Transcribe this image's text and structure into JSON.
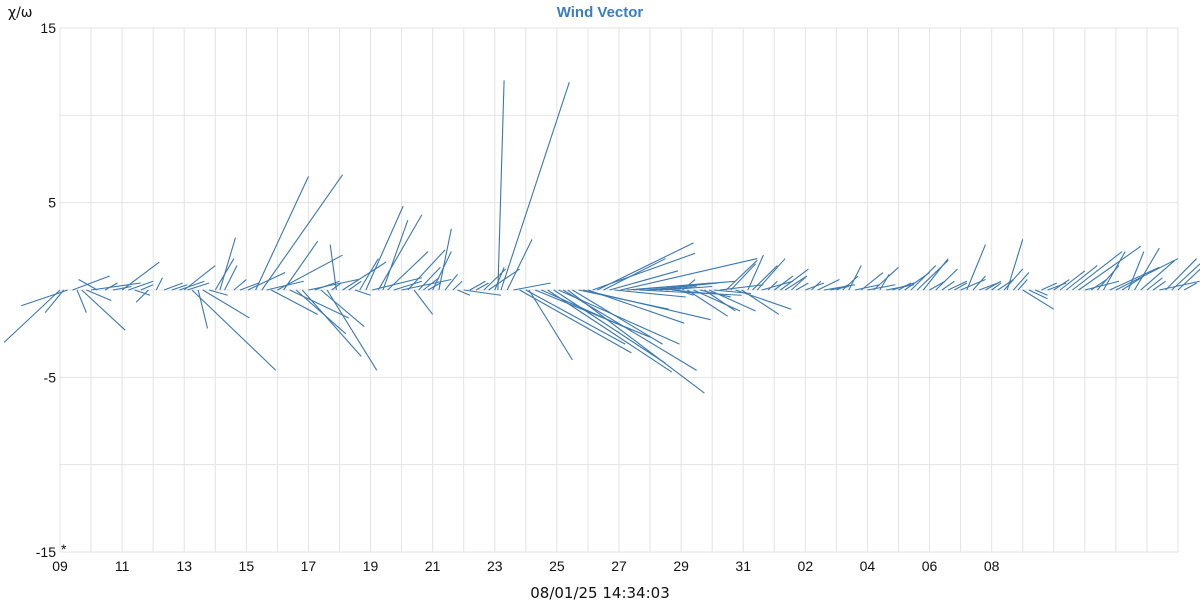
{
  "chart_data": {
    "type": "vector",
    "title": "Wind Vector",
    "ylabel": "χ/ω",
    "footer": "08/01/25 14:34:03",
    "y_ticks": [
      15,
      5,
      -5,
      -15
    ],
    "ylim": [
      -15,
      15
    ],
    "x_ticks": [
      "09",
      "11",
      "13",
      "15",
      "17",
      "19",
      "21",
      "23",
      "25",
      "27",
      "29",
      "31",
      "02",
      "04",
      "06",
      "08"
    ],
    "x_day_start": "09",
    "x_day_end": "09",
    "grid": true,
    "colors": {
      "title": "#3a7ebf",
      "vector": "#3a78b0",
      "grid": "#e3e3e3"
    },
    "vectors": [
      [
        0.0,
        -1.8,
        -3.0
      ],
      [
        0.12,
        -0.6,
        -1.3
      ],
      [
        0.25,
        -1.5,
        -0.9
      ],
      [
        0.4,
        1.2,
        0.8
      ],
      [
        0.55,
        0.3,
        -1.3
      ],
      [
        0.7,
        1.4,
        -2.3
      ],
      [
        0.85,
        0.8,
        -0.6
      ],
      [
        1.0,
        1.6,
        0.4
      ],
      [
        1.2,
        -0.6,
        0.6
      ],
      [
        1.45,
        0.4,
        0.4
      ],
      [
        1.7,
        0.6,
        0.2
      ],
      [
        2.0,
        1.2,
        1.6
      ],
      [
        2.2,
        0.8,
        0.5
      ],
      [
        2.4,
        0.5,
        -0.3
      ],
      [
        2.6,
        0.4,
        0.3
      ],
      [
        2.85,
        -0.4,
        -0.7
      ],
      [
        3.1,
        0.2,
        0.7
      ],
      [
        3.35,
        0.6,
        0.4
      ],
      [
        3.6,
        0.5,
        0.3
      ],
      [
        3.85,
        0.8,
        0.5
      ],
      [
        4.0,
        1.0,
        1.4
      ],
      [
        4.1,
        0.7,
        0.4
      ],
      [
        4.25,
        2.7,
        -4.6
      ],
      [
        4.45,
        0.3,
        -2.2
      ],
      [
        4.6,
        1.5,
        -1.6
      ],
      [
        4.8,
        0.6,
        -0.3
      ],
      [
        5.0,
        0.6,
        1.8
      ],
      [
        5.15,
        0.5,
        3.0
      ],
      [
        5.3,
        0.4,
        1.4
      ],
      [
        5.6,
        0.4,
        0.6
      ],
      [
        5.8,
        0.6,
        0.4
      ],
      [
        6.05,
        1.2,
        1.0
      ],
      [
        6.3,
        1.7,
        6.5
      ],
      [
        6.5,
        2.6,
        6.6
      ],
      [
        6.65,
        1.2,
        0.5
      ],
      [
        6.8,
        1.5,
        -1.4
      ],
      [
        7.0,
        2.1,
        2.0
      ],
      [
        7.2,
        1.1,
        2.8
      ],
      [
        7.4,
        1.9,
        -1.6
      ],
      [
        7.6,
        1.6,
        -2.5
      ],
      [
        7.8,
        1.9,
        -3.8
      ],
      [
        8.0,
        1.6,
        0.6
      ],
      [
        8.2,
        0.8,
        0.5
      ],
      [
        8.4,
        1.4,
        -2.1
      ],
      [
        8.6,
        1.6,
        -4.6
      ],
      [
        8.75,
        0.3,
        0.4
      ],
      [
        8.9,
        -0.2,
        2.6
      ],
      [
        9.1,
        1.4,
        1.6
      ],
      [
        9.3,
        0.4,
        0.5
      ],
      [
        9.5,
        0.5,
        -0.3
      ],
      [
        9.65,
        0.6,
        1.8
      ],
      [
        9.85,
        1.2,
        4.8
      ],
      [
        10.05,
        1.6,
        0.7
      ],
      [
        10.25,
        1.4,
        4.3
      ],
      [
        10.4,
        0.8,
        4.0
      ],
      [
        10.55,
        1.3,
        2.2
      ],
      [
        10.75,
        0.9,
        0.5
      ],
      [
        11.0,
        1.6,
        0.6
      ],
      [
        11.2,
        1.2,
        2.3
      ],
      [
        11.4,
        0.6,
        -1.4
      ],
      [
        11.55,
        0.7,
        1.3
      ],
      [
        11.7,
        0.5,
        0.7
      ],
      [
        11.85,
        0.4,
        0.4
      ],
      [
        12.0,
        0.6,
        2.2
      ],
      [
        12.2,
        0.4,
        3.5
      ],
      [
        12.4,
        0.4,
        0.9
      ],
      [
        12.65,
        0.3,
        0.5
      ],
      [
        12.8,
        0.4,
        -0.3
      ],
      [
        13.0,
        1.2,
        -0.3
      ],
      [
        13.2,
        0.5,
        0.5
      ],
      [
        13.4,
        0.4,
        0.4
      ],
      [
        13.65,
        0.7,
        1.2
      ],
      [
        13.8,
        1.0,
        1.2
      ],
      [
        14.0,
        0.3,
        1.3
      ],
      [
        14.1,
        0.2,
        12.0
      ],
      [
        14.2,
        2.2,
        11.9
      ],
      [
        14.4,
        0.8,
        2.9
      ],
      [
        14.6,
        1.2,
        0.4
      ],
      [
        14.8,
        3.6,
        -3.6
      ],
      [
        15.0,
        3.2,
        -3.1
      ],
      [
        15.1,
        1.4,
        -4.0
      ],
      [
        15.3,
        3.7,
        -2.7
      ],
      [
        15.5,
        2.9,
        -2.3
      ],
      [
        15.7,
        4.0,
        -4.7
      ],
      [
        15.9,
        3.6,
        -4.2
      ],
      [
        16.05,
        3.9,
        -3.1
      ],
      [
        16.2,
        4.3,
        -4.6
      ],
      [
        16.35,
        4.4,
        -5.9
      ],
      [
        16.5,
        2.9,
        -3.1
      ],
      [
        16.7,
        2.9,
        -1.1
      ],
      [
        16.85,
        4.1,
        -1.7
      ],
      [
        17.0,
        3.1,
        -1.9
      ],
      [
        17.15,
        3.3,
        2.1
      ],
      [
        17.3,
        3.1,
        2.7
      ],
      [
        17.5,
        2.0,
        1.8
      ],
      [
        17.7,
        2.2,
        1.1
      ],
      [
        17.85,
        2.3,
        -0.4
      ],
      [
        18.05,
        4.4,
        1.8
      ],
      [
        18.25,
        3.5,
        0.5
      ],
      [
        18.45,
        2.5,
        0.4
      ],
      [
        18.65,
        3.3,
        -0.3
      ],
      [
        18.9,
        2.3,
        0.4
      ],
      [
        19.1,
        1.5,
        0.3
      ],
      [
        19.3,
        1.2,
        0.2
      ],
      [
        19.5,
        1.5,
        0.2
      ],
      [
        19.7,
        1.2,
        -0.2
      ],
      [
        19.9,
        0.5,
        -0.3
      ],
      [
        20.05,
        0.4,
        0.6
      ],
      [
        20.2,
        1.3,
        -1.5
      ],
      [
        20.4,
        1.5,
        -1.2
      ],
      [
        20.6,
        1.0,
        -0.4
      ],
      [
        20.75,
        1.0,
        -1.2
      ],
      [
        20.9,
        1.5,
        -1.2
      ],
      [
        21.05,
        1.2,
        -0.2
      ],
      [
        21.25,
        1.4,
        0.3
      ],
      [
        21.45,
        1.0,
        1.7
      ],
      [
        21.6,
        0.8,
        1.5
      ],
      [
        21.75,
        1.8,
        -1.1
      ],
      [
        21.95,
        1.2,
        -1.4
      ],
      [
        22.15,
        0.5,
        2.0
      ],
      [
        22.3,
        0.8,
        1.4
      ],
      [
        22.45,
        0.9,
        1.8
      ],
      [
        22.6,
        1.0,
        0.5
      ],
      [
        22.8,
        0.3,
        0.5
      ],
      [
        23.0,
        0.6,
        0.8
      ],
      [
        23.2,
        0.9,
        1.2
      ],
      [
        23.35,
        0.7,
        0.8
      ],
      [
        23.55,
        0.5,
        0.8
      ],
      [
        23.7,
        0.4,
        0.4
      ],
      [
        24.0,
        0.6,
        0.4
      ],
      [
        24.2,
        0.3,
        0.5
      ],
      [
        24.4,
        0.7,
        0.6
      ],
      [
        24.6,
        1.0,
        0.3
      ],
      [
        24.8,
        0.6,
        0.2
      ],
      [
        25.0,
        0.4,
        0.3
      ],
      [
        25.2,
        0.5,
        0.8
      ],
      [
        25.4,
        0.4,
        1.4
      ],
      [
        25.6,
        0.8,
        0.3
      ],
      [
        25.8,
        0.7,
        1.0
      ],
      [
        26.0,
        0.9,
        0.3
      ],
      [
        26.2,
        0.8,
        1.3
      ],
      [
        26.4,
        0.3,
        0.9
      ],
      [
        26.6,
        0.9,
        0.3
      ],
      [
        26.8,
        0.7,
        0.4
      ],
      [
        27.0,
        0.4,
        0.4
      ],
      [
        27.2,
        0.8,
        1.0
      ],
      [
        27.4,
        0.8,
        1.4
      ],
      [
        27.6,
        1.0,
        1.7
      ],
      [
        27.8,
        0.8,
        1.8
      ],
      [
        28.0,
        0.5,
        0.5
      ],
      [
        28.2,
        0.7,
        1.2
      ],
      [
        28.4,
        0.4,
        0.5
      ],
      [
        28.6,
        0.6,
        0.5
      ],
      [
        28.8,
        0.4,
        0.4
      ],
      [
        29.0,
        0.8,
        0.6
      ],
      [
        29.2,
        0.6,
        2.6
      ],
      [
        29.4,
        0.4,
        0.8
      ],
      [
        29.6,
        0.6,
        0.4
      ],
      [
        29.8,
        0.5,
        0.5
      ],
      [
        30.0,
        0.3,
        0.4
      ],
      [
        30.2,
        0.5,
        0.6
      ],
      [
        30.4,
        0.6,
        1.2
      ],
      [
        30.5,
        0.5,
        2.9
      ],
      [
        30.7,
        0.5,
        1.0
      ],
      [
        30.85,
        0.3,
        0.6
      ],
      [
        31.0,
        1.0,
        -1.1
      ],
      [
        31.2,
        0.6,
        -0.5
      ],
      [
        31.4,
        0.4,
        -0.3
      ],
      [
        31.6,
        0.5,
        0.4
      ],
      [
        31.8,
        0.6,
        0.4
      ],
      [
        32.0,
        0.5,
        0.6
      ],
      [
        32.2,
        0.8,
        1.1
      ],
      [
        32.4,
        1.0,
        1.4
      ],
      [
        32.6,
        1.6,
        2.2
      ],
      [
        32.8,
        2.0,
        2.5
      ],
      [
        33.0,
        1.1,
        0.5
      ],
      [
        33.2,
        0.5,
        0.6
      ],
      [
        33.4,
        0.7,
        1.4
      ],
      [
        33.6,
        0.7,
        2.2
      ],
      [
        33.8,
        1.6,
        1.3
      ],
      [
        34.0,
        2.0,
        1.8
      ],
      [
        34.2,
        0.7,
        0.8
      ],
      [
        34.4,
        0.5,
        2.2
      ],
      [
        34.6,
        0.8,
        2.4
      ],
      [
        34.8,
        1.1,
        1.7
      ],
      [
        35.0,
        0.5,
        0.7
      ],
      [
        35.2,
        0.4,
        0.5
      ],
      [
        35.4,
        1.3,
        0.5
      ],
      [
        35.6,
        1.0,
        1.8
      ],
      [
        35.8,
        1.4,
        2.3
      ],
      [
        36.0,
        1.2,
        2.0
      ],
      [
        36.2,
        0.4,
        0.4
      ]
    ]
  }
}
